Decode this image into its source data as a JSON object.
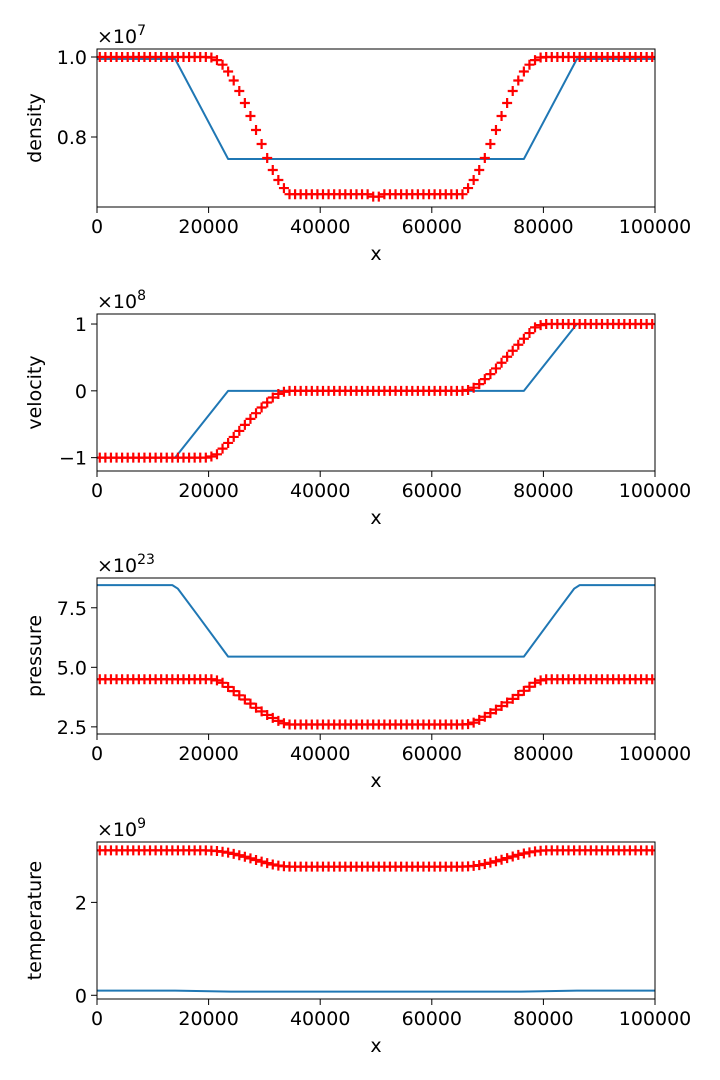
{
  "chart_data": [
    {
      "type": "line",
      "ylabel": "density",
      "xlabel": "x",
      "xlim": [
        0,
        100000
      ],
      "ylim": [
        0.625,
        1.02
      ],
      "x_ticks": [
        0,
        20000,
        40000,
        60000,
        80000,
        100000
      ],
      "x_tick_labels": [
        "0",
        "20000",
        "40000",
        "60000",
        "80000",
        "100000"
      ],
      "y_ticks": [
        0.8,
        1.0
      ],
      "y_tick_labels": [
        "0.8",
        "1.0"
      ],
      "offset_base": "×10",
      "offset_exp": "7",
      "line_color": "#1f77b4",
      "marker_color": "#ff0000",
      "line": {
        "x": [
          0,
          14000,
          23500,
          76500,
          86000,
          100000
        ],
        "y": [
          0.995,
          0.995,
          0.745,
          0.745,
          0.995,
          0.995
        ]
      },
      "markers_profile": {
        "x": [
          0,
          19500,
          21000,
          23000,
          25000,
          27000,
          29000,
          31000,
          33000,
          34500,
          48500,
          50000,
          51500,
          65500,
          67000,
          69000,
          71000,
          73000,
          75000,
          77000,
          79000,
          80500,
          100000
        ],
        "y": [
          1.0,
          1.0,
          0.998,
          0.975,
          0.93,
          0.87,
          0.8,
          0.73,
          0.68,
          0.657,
          0.657,
          0.648,
          0.657,
          0.657,
          0.68,
          0.73,
          0.8,
          0.87,
          0.93,
          0.975,
          0.998,
          1.0,
          1.0
        ]
      }
    },
    {
      "type": "line",
      "ylabel": "velocity",
      "xlabel": "x",
      "xlim": [
        0,
        100000
      ],
      "ylim": [
        -1.2,
        1.15
      ],
      "x_ticks": [
        0,
        20000,
        40000,
        60000,
        80000,
        100000
      ],
      "x_tick_labels": [
        "0",
        "20000",
        "40000",
        "60000",
        "80000",
        "100000"
      ],
      "y_ticks": [
        -1,
        0,
        1
      ],
      "y_tick_labels": [
        "−1",
        "0",
        "1"
      ],
      "offset_base": "×10",
      "offset_exp": "8",
      "line_color": "#1f77b4",
      "marker_color": "#ff0000",
      "line": {
        "x": [
          0,
          14000,
          23500,
          76500,
          86000,
          100000
        ],
        "y": [
          -1.0,
          -1.0,
          0.0,
          0.0,
          1.0,
          1.0
        ]
      },
      "markers_profile": {
        "x": [
          0,
          20000,
          21500,
          23500,
          25500,
          27500,
          29500,
          31500,
          33000,
          34500,
          65500,
          67000,
          68500,
          70500,
          72500,
          74500,
          76500,
          78500,
          80000,
          100000
        ],
        "y": [
          -1.0,
          -1.0,
          -0.95,
          -0.78,
          -0.6,
          -0.42,
          -0.25,
          -0.1,
          -0.02,
          0.0,
          0.0,
          0.02,
          0.1,
          0.25,
          0.42,
          0.6,
          0.78,
          0.95,
          1.0,
          1.0
        ]
      }
    },
    {
      "type": "line",
      "ylabel": "pressure",
      "xlabel": "x",
      "xlim": [
        0,
        100000
      ],
      "ylim": [
        2.2,
        8.75
      ],
      "x_ticks": [
        0,
        20000,
        40000,
        60000,
        80000,
        100000
      ],
      "x_tick_labels": [
        "0",
        "20000",
        "40000",
        "60000",
        "80000",
        "100000"
      ],
      "y_ticks": [
        2.5,
        5.0,
        7.5
      ],
      "y_tick_labels": [
        "2.5",
        "5.0",
        "7.5"
      ],
      "offset_base": "×10",
      "offset_exp": "23",
      "line_color": "#1f77b4",
      "marker_color": "#ff0000",
      "line": {
        "x": [
          0,
          13500,
          14500,
          18000,
          23500,
          76500,
          82000,
          85500,
          86500,
          100000
        ],
        "y": [
          8.45,
          8.45,
          8.3,
          7.2,
          5.45,
          5.45,
          7.2,
          8.3,
          8.45,
          8.45
        ]
      },
      "markers_profile": {
        "x": [
          0,
          21000,
          22500,
          24500,
          26500,
          28500,
          30500,
          32500,
          34000,
          65500,
          67000,
          69000,
          71000,
          73000,
          75000,
          77000,
          78500,
          80000,
          100000
        ],
        "y": [
          4.5,
          4.5,
          4.35,
          4.0,
          3.65,
          3.3,
          3.0,
          2.75,
          2.6,
          2.6,
          2.62,
          2.85,
          3.15,
          3.45,
          3.75,
          4.1,
          4.35,
          4.5,
          4.5
        ]
      }
    },
    {
      "type": "line",
      "ylabel": "temperature",
      "xlabel": "x",
      "xlim": [
        0,
        100000
      ],
      "ylim": [
        -0.08,
        3.3
      ],
      "x_ticks": [
        0,
        20000,
        40000,
        60000,
        80000,
        100000
      ],
      "x_tick_labels": [
        "0",
        "20000",
        "40000",
        "60000",
        "80000",
        "100000"
      ],
      "y_ticks": [
        0,
        2
      ],
      "y_tick_labels": [
        "0",
        "2"
      ],
      "offset_base": "×10",
      "offset_exp": "9",
      "line_color": "#1f77b4",
      "marker_color": "#ff0000",
      "line": {
        "x": [
          0,
          14000,
          24000,
          76000,
          86000,
          100000
        ],
        "y": [
          0.1,
          0.1,
          0.08,
          0.08,
          0.1,
          0.1
        ]
      },
      "markers_profile": {
        "x": [
          0,
          20000,
          22000,
          24000,
          26000,
          28000,
          30000,
          32000,
          34000,
          66000,
          68000,
          70000,
          72000,
          74000,
          76000,
          78000,
          80000,
          100000
        ],
        "y": [
          3.12,
          3.12,
          3.1,
          3.06,
          3.0,
          2.93,
          2.86,
          2.8,
          2.77,
          2.77,
          2.79,
          2.84,
          2.9,
          2.97,
          3.04,
          3.09,
          3.12,
          3.12
        ]
      }
    }
  ]
}
